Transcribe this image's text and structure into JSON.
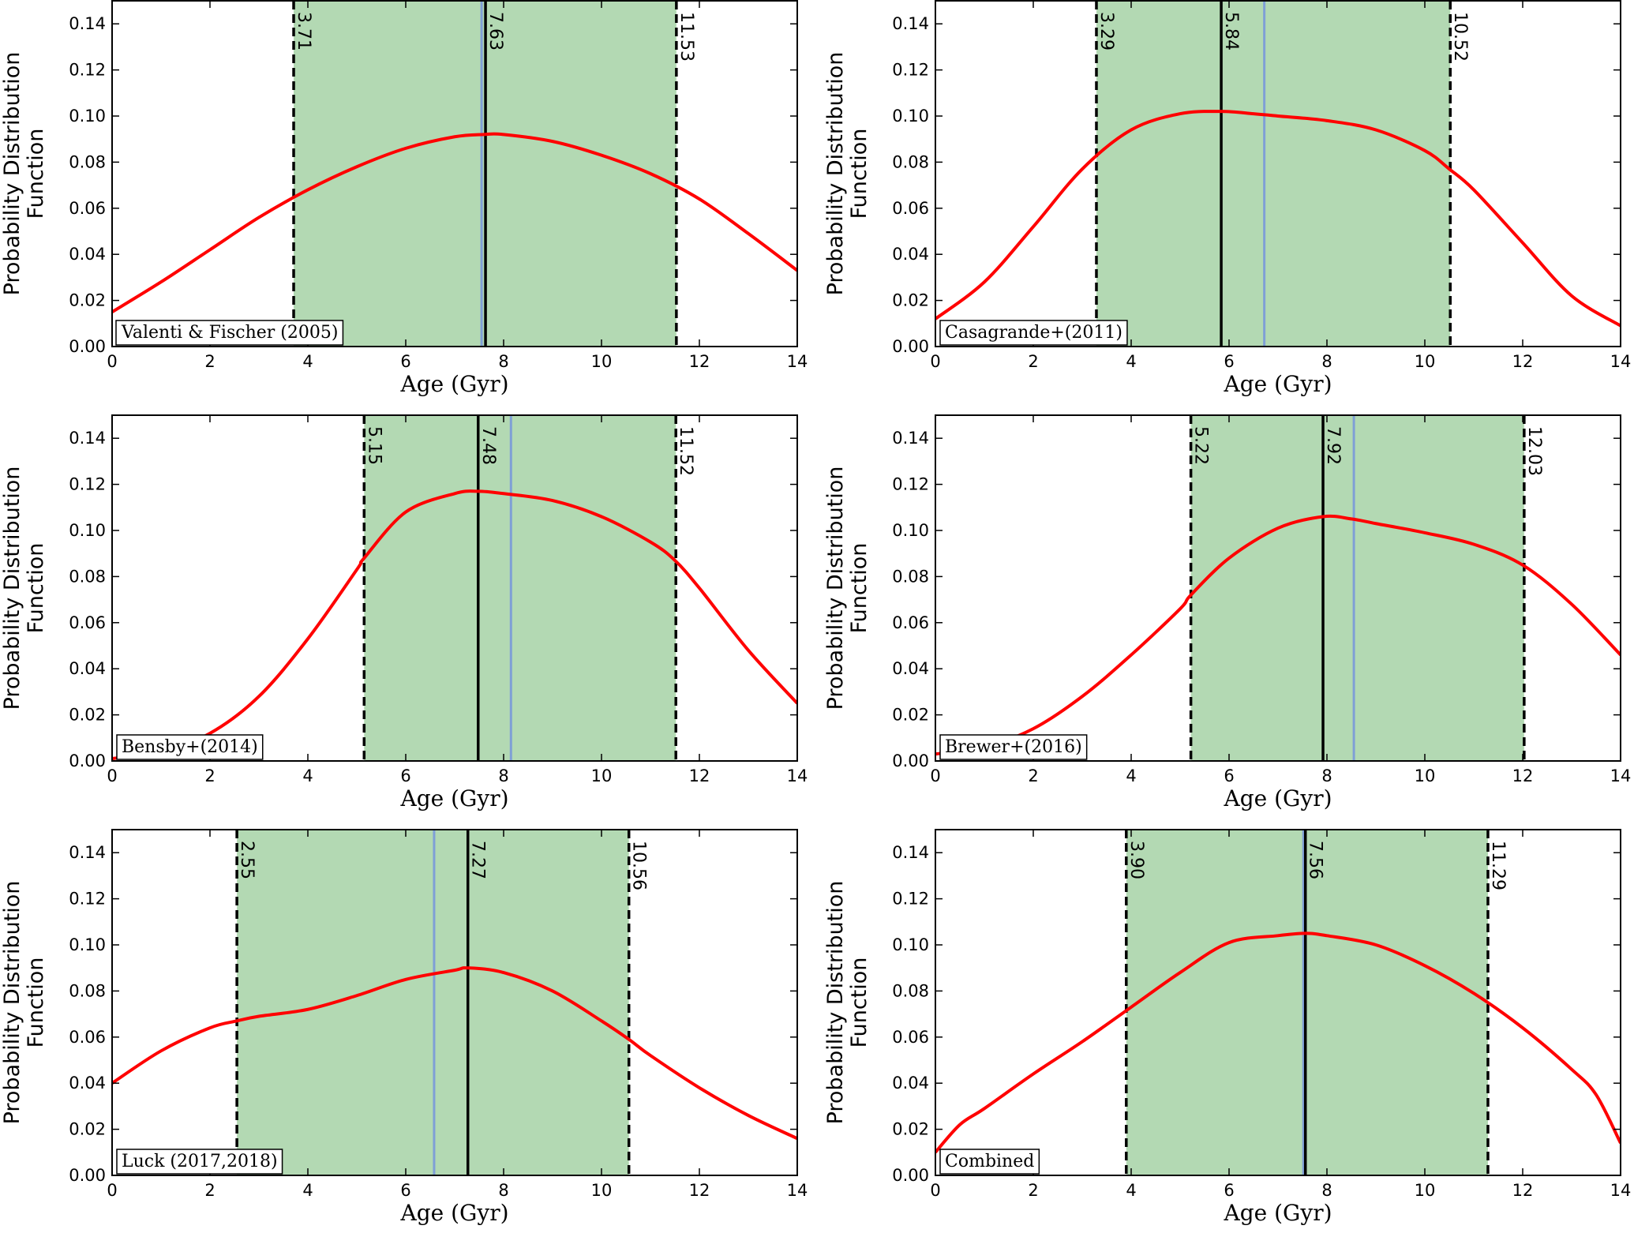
{
  "chart_data": [
    {
      "type": "line",
      "label": "Valenti & Fischer (2005)",
      "xlabel": "Age (Gyr)",
      "ylabel": [
        "Probability Distribution",
        "Function"
      ],
      "xlim": [
        0,
        14
      ],
      "ylim": [
        0,
        0.15
      ],
      "xticks": [
        0,
        2,
        4,
        6,
        8,
        10,
        12,
        14
      ],
      "yticks": [
        0.0,
        0.02,
        0.04,
        0.06,
        0.08,
        0.1,
        0.12,
        0.14
      ],
      "lower": 3.71,
      "median": 7.63,
      "upper": 11.53,
      "blue_line": 7.55,
      "lower_label": "3.71",
      "median_label": "7.63",
      "upper_label": "11.53",
      "curve": {
        "x": [
          0,
          1,
          2,
          3,
          4,
          5,
          6,
          7,
          7.6,
          8,
          9,
          10,
          11,
          12,
          13,
          14
        ],
        "y": [
          0.015,
          0.028,
          0.042,
          0.056,
          0.068,
          0.078,
          0.086,
          0.091,
          0.092,
          0.092,
          0.089,
          0.083,
          0.075,
          0.064,
          0.049,
          0.033
        ]
      }
    },
    {
      "type": "line",
      "label": "Casagrande+(2011)",
      "xlabel": "Age (Gyr)",
      "ylabel": [
        "Probability Distribution",
        "Function"
      ],
      "xlim": [
        0,
        14
      ],
      "ylim": [
        0,
        0.15
      ],
      "xticks": [
        0,
        2,
        4,
        6,
        8,
        10,
        12,
        14
      ],
      "yticks": [
        0.0,
        0.02,
        0.04,
        0.06,
        0.08,
        0.1,
        0.12,
        0.14
      ],
      "lower": 3.29,
      "median": 5.84,
      "upper": 10.52,
      "blue_line": 6.72,
      "lower_label": "3.29",
      "median_label": "5.84",
      "upper_label": "10.52",
      "curve": {
        "x": [
          0,
          1,
          2,
          3,
          4,
          5,
          5.84,
          6.5,
          7,
          8,
          9,
          10,
          10.5,
          11,
          12,
          13,
          14
        ],
        "y": [
          0.012,
          0.028,
          0.052,
          0.077,
          0.094,
          0.101,
          0.102,
          0.101,
          0.1,
          0.098,
          0.094,
          0.085,
          0.077,
          0.068,
          0.045,
          0.022,
          0.009
        ]
      }
    },
    {
      "type": "line",
      "label": "Bensby+(2014)",
      "xlabel": "Age (Gyr)",
      "ylabel": [
        "Probability Distribution",
        "Function"
      ],
      "xlim": [
        0,
        14
      ],
      "ylim": [
        0,
        0.15
      ],
      "xticks": [
        0,
        2,
        4,
        6,
        8,
        10,
        12,
        14
      ],
      "yticks": [
        0.0,
        0.02,
        0.04,
        0.06,
        0.08,
        0.1,
        0.12,
        0.14
      ],
      "lower": 5.15,
      "median": 7.48,
      "upper": 11.52,
      "blue_line": 8.15,
      "lower_label": "5.15",
      "median_label": "7.48",
      "upper_label": "11.52",
      "curve": {
        "x": [
          0,
          1,
          2,
          3,
          4,
          5,
          5.15,
          6,
          7,
          7.48,
          8,
          9,
          10,
          11,
          11.5,
          12,
          13,
          14
        ],
        "y": [
          0.001,
          0.004,
          0.012,
          0.028,
          0.053,
          0.083,
          0.088,
          0.108,
          0.116,
          0.117,
          0.116,
          0.113,
          0.106,
          0.095,
          0.087,
          0.075,
          0.048,
          0.025
        ]
      }
    },
    {
      "type": "line",
      "label": "Brewer+(2016)",
      "xlabel": "Age (Gyr)",
      "ylabel": [
        "Probability Distribution",
        "Function"
      ],
      "xlim": [
        0,
        14
      ],
      "ylim": [
        0,
        0.15
      ],
      "xticks": [
        0,
        2,
        4,
        6,
        8,
        10,
        12,
        14
      ],
      "yticks": [
        0.0,
        0.02,
        0.04,
        0.06,
        0.08,
        0.1,
        0.12,
        0.14
      ],
      "lower": 5.22,
      "median": 7.92,
      "upper": 12.03,
      "blue_line": 8.55,
      "lower_label": "5.22",
      "median_label": "7.92",
      "upper_label": "12.03",
      "curve": {
        "x": [
          0,
          1,
          2,
          3,
          4,
          5,
          5.22,
          6,
          7,
          7.92,
          8.5,
          9,
          10,
          11,
          12,
          13,
          14
        ],
        "y": [
          0.003,
          0.006,
          0.014,
          0.028,
          0.046,
          0.066,
          0.072,
          0.088,
          0.101,
          0.106,
          0.105,
          0.103,
          0.099,
          0.094,
          0.085,
          0.068,
          0.046
        ]
      }
    },
    {
      "type": "line",
      "label": "Luck (2017,2018)",
      "xlabel": "Age (Gyr)",
      "ylabel": [
        "Probability Distribution",
        "Function"
      ],
      "xlim": [
        0,
        14
      ],
      "ylim": [
        0,
        0.15
      ],
      "xticks": [
        0,
        2,
        4,
        6,
        8,
        10,
        12,
        14
      ],
      "yticks": [
        0.0,
        0.02,
        0.04,
        0.06,
        0.08,
        0.1,
        0.12,
        0.14
      ],
      "lower": 2.55,
      "median": 7.27,
      "upper": 10.56,
      "blue_line": 6.58,
      "lower_label": "2.55",
      "median_label": "7.27",
      "upper_label": "10.56",
      "curve": {
        "x": [
          0,
          1,
          2,
          2.55,
          3,
          4,
          5,
          6,
          7,
          7.27,
          8,
          9,
          10,
          10.56,
          11,
          12,
          13,
          14
        ],
        "y": [
          0.04,
          0.054,
          0.064,
          0.067,
          0.069,
          0.072,
          0.078,
          0.085,
          0.089,
          0.09,
          0.088,
          0.08,
          0.067,
          0.059,
          0.052,
          0.038,
          0.026,
          0.016
        ]
      }
    },
    {
      "type": "line",
      "label": "Combined",
      "xlabel": "Age (Gyr)",
      "ylabel": [
        "Probability Distribution",
        "Function"
      ],
      "xlim": [
        0,
        14
      ],
      "ylim": [
        0,
        0.15
      ],
      "xticks": [
        0,
        2,
        4,
        6,
        8,
        10,
        12,
        14
      ],
      "yticks": [
        0.0,
        0.02,
        0.04,
        0.06,
        0.08,
        0.1,
        0.12,
        0.14
      ],
      "lower": 3.9,
      "median": 7.56,
      "upper": 11.29,
      "blue_line": 7.52,
      "lower_label": "3.90",
      "median_label": "7.56",
      "upper_label": "11.29",
      "curve": {
        "x": [
          0,
          0.5,
          1,
          2,
          3,
          4,
          5,
          6,
          7,
          7.56,
          8,
          9,
          10,
          11,
          12,
          13,
          13.5,
          14
        ],
        "y": [
          0.01,
          0.022,
          0.029,
          0.044,
          0.058,
          0.073,
          0.088,
          0.101,
          0.104,
          0.105,
          0.104,
          0.1,
          0.091,
          0.079,
          0.064,
          0.046,
          0.035,
          0.014
        ]
      }
    }
  ],
  "colors": {
    "curve": "#ff0000",
    "band": "#b3d9b3",
    "median_line": "#000000",
    "blue_line": "#7f9fd6"
  }
}
